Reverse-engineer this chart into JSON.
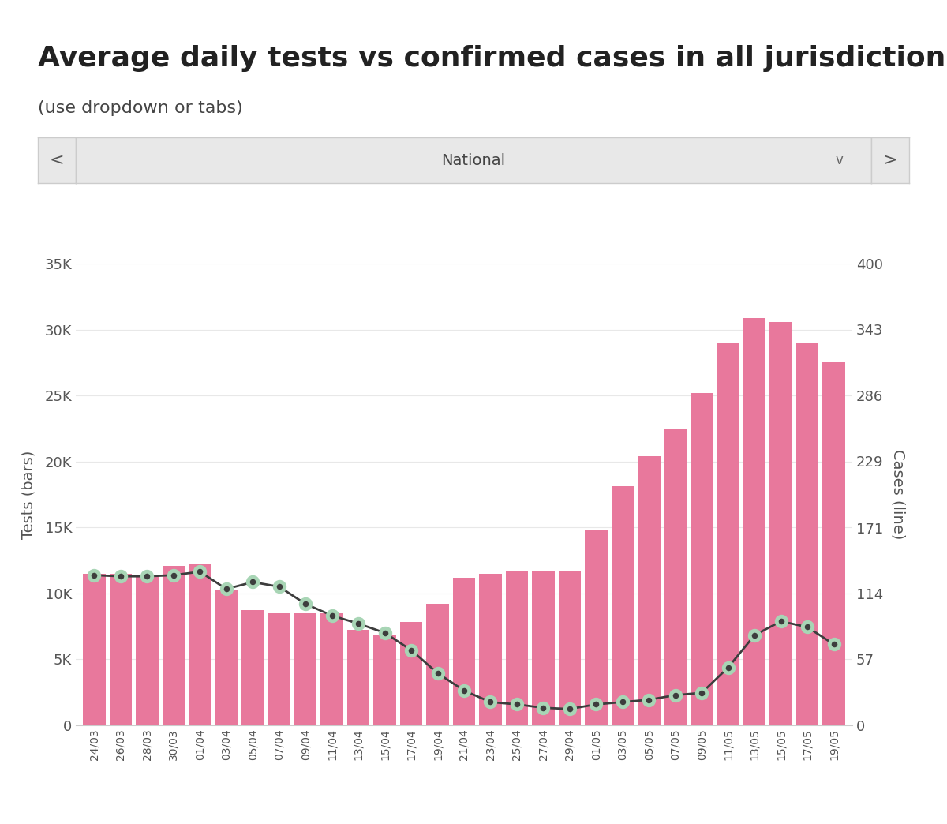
{
  "title": "Average daily tests vs confirmed cases in all jurisdictions",
  "subtitle": "(use dropdown or tabs)",
  "dropdown_label": "National",
  "ylabel_left": "Tests (bars)",
  "ylabel_right": "Cases (line)",
  "background_color": "#ffffff",
  "bar_color": "#e8789c",
  "line_color": "#3d3d3d",
  "line_marker_facecolor": "#3d3d3d",
  "line_marker_edge_color": "#a8d5b5",
  "dates": [
    "24/03",
    "26/03",
    "28/03",
    "30/03",
    "01/04",
    "03/04",
    "05/04",
    "07/04",
    "09/04",
    "11/04",
    "13/04",
    "15/04",
    "17/04",
    "19/04",
    "21/04",
    "23/04",
    "25/04",
    "27/04",
    "29/04",
    "01/05",
    "03/05",
    "05/05",
    "07/05",
    "09/05",
    "11/05",
    "13/05",
    "15/05",
    "17/05",
    "19/05"
  ],
  "tests": [
    11500,
    11500,
    11300,
    12100,
    12200,
    10200,
    8700,
    8500,
    8500,
    8500,
    7200,
    6800,
    7800,
    9200,
    11200,
    11500,
    11700,
    11700,
    11700,
    14800,
    18100,
    20400,
    22500,
    25200,
    29000,
    30900,
    30600,
    29000,
    27500
  ],
  "cases": [
    130,
    129,
    129,
    130,
    133,
    118,
    124,
    120,
    105,
    95,
    88,
    80,
    65,
    45,
    30,
    20,
    18,
    15,
    14,
    18,
    20,
    22,
    26,
    28,
    50,
    78,
    90,
    85,
    70
  ],
  "yticks_left": [
    0,
    5000,
    10000,
    15000,
    20000,
    25000,
    30000,
    35000
  ],
  "ytick_labels_left": [
    "0",
    "5K",
    "10K",
    "15K",
    "20K",
    "25K",
    "30K",
    "35K"
  ],
  "yticks_right": [
    0,
    57,
    114,
    171,
    229,
    286,
    343,
    400
  ],
  "ytick_labels_right": [
    "0",
    "57",
    "114",
    "171",
    "229",
    "286",
    "343",
    "400"
  ],
  "ylim_left": [
    0,
    35000
  ],
  "ylim_right": [
    0,
    400
  ],
  "title_fontsize": 26,
  "subtitle_fontsize": 16,
  "tick_fontsize": 13,
  "axis_label_fontsize": 14,
  "dropdown_bg": "#e8e8e8",
  "dropdown_border": "#cccccc",
  "separator_color": "#cccccc"
}
